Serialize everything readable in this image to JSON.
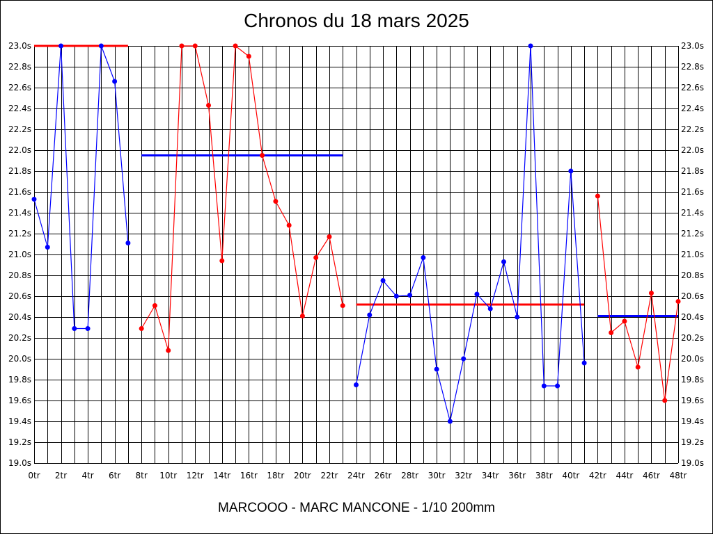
{
  "chart_data": {
    "type": "line",
    "title": "Chronos du 18 mars 2025",
    "footer": "MARCOOO - MARC MANCONE - 1/10 200mm",
    "xlabel": "",
    "ylabel": "",
    "xlim": [
      0,
      48
    ],
    "ylim": [
      19.0,
      23.0
    ],
    "grid": true,
    "x_ticks": [
      "0tr",
      "2tr",
      "4tr",
      "6tr",
      "8tr",
      "10tr",
      "12tr",
      "14tr",
      "16tr",
      "18tr",
      "20tr",
      "22tr",
      "24tr",
      "26tr",
      "28tr",
      "30tr",
      "32tr",
      "34tr",
      "36tr",
      "38tr",
      "40tr",
      "42tr",
      "44tr",
      "46tr",
      "48tr"
    ],
    "y_ticks": [
      "19.0s",
      "19.2s",
      "19.4s",
      "19.6s",
      "19.8s",
      "20.0s",
      "20.2s",
      "20.4s",
      "20.6s",
      "20.8s",
      "21.0s",
      "21.2s",
      "21.4s",
      "21.6s",
      "21.8s",
      "22.0s",
      "22.2s",
      "22.4s",
      "22.6s",
      "22.8s",
      "23.0s"
    ],
    "series": [
      {
        "color": "#0000ff",
        "x": [
          0,
          1,
          2,
          3,
          4,
          5,
          6,
          7
        ],
        "y": [
          21.53,
          21.07,
          23.0,
          20.29,
          20.29,
          23.0,
          22.66,
          21.11
        ]
      },
      {
        "color": "#ff0000",
        "x": [
          8,
          9,
          10,
          11,
          12,
          13,
          14,
          15,
          16,
          17,
          18,
          19,
          20,
          21,
          22,
          23
        ],
        "y": [
          20.29,
          20.51,
          20.08,
          23.0,
          23.0,
          22.43,
          20.94,
          23.0,
          22.9,
          21.95,
          21.51,
          21.28,
          20.41,
          20.97,
          21.17,
          20.51
        ]
      },
      {
        "color": "#0000ff",
        "x": [
          24,
          25,
          26,
          27,
          28,
          29,
          30,
          31,
          32,
          33,
          34,
          35,
          36,
          37,
          38,
          39,
          40,
          41
        ],
        "y": [
          19.75,
          20.42,
          20.75,
          20.6,
          20.61,
          20.97,
          19.9,
          19.4,
          20.0,
          20.62,
          20.48,
          20.93,
          20.4,
          23.0,
          19.74,
          19.74,
          21.8,
          19.96
        ]
      },
      {
        "color": "#ff0000",
        "x": [
          42,
          43,
          44,
          45,
          46,
          47,
          48
        ],
        "y": [
          21.56,
          20.25,
          20.36,
          19.92,
          20.63,
          19.6,
          20.55
        ]
      }
    ],
    "averages": [
      {
        "color": "#ff0000",
        "x0": 0,
        "x1": 7,
        "value": 23.0
      },
      {
        "color": "#0000ff",
        "x0": 8,
        "x1": 23,
        "value": 21.95
      },
      {
        "color": "#ff0000",
        "x0": 24,
        "x1": 41,
        "value": 20.52
      },
      {
        "color": "#0000ff",
        "x0": 42,
        "x1": 48,
        "value": 20.41
      }
    ]
  }
}
